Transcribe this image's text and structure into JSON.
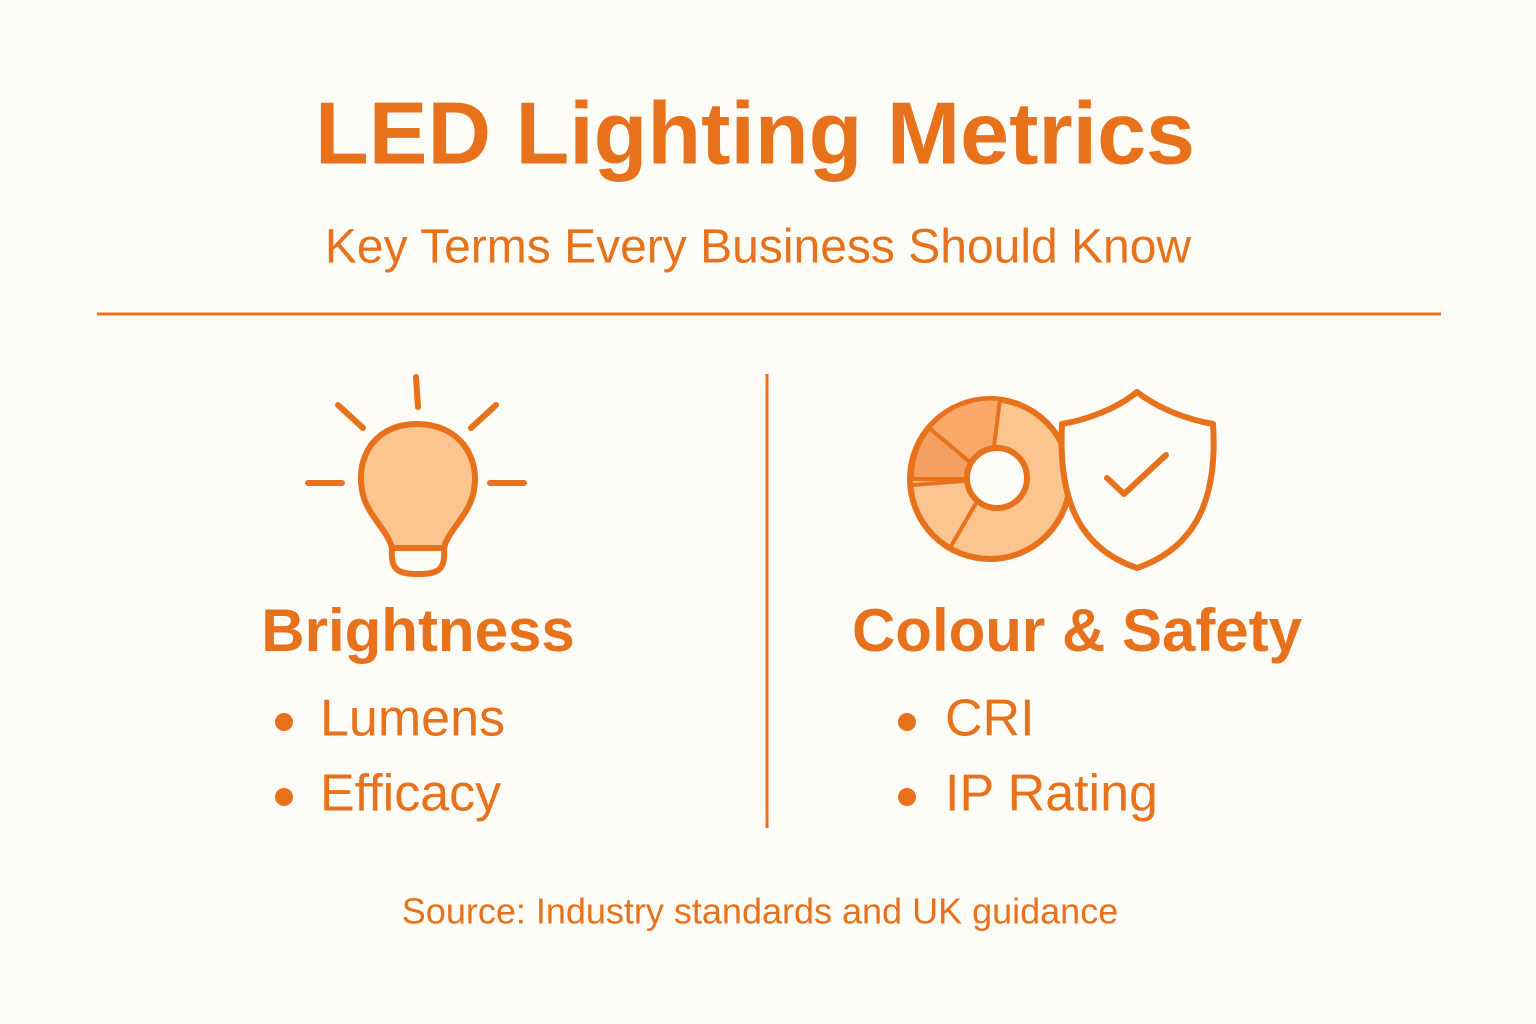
{
  "header": {
    "title": "LED Lighting Metrics",
    "subtitle": "Key Terms Every Business Should Know"
  },
  "columns": [
    {
      "heading": "Brightness",
      "items": [
        "Lumens",
        "Efficacy"
      ]
    },
    {
      "heading": "Colour & Safety",
      "items": [
        "CRI",
        "IP Rating"
      ]
    }
  ],
  "source": "Source: Industry standards and UK guidance"
}
